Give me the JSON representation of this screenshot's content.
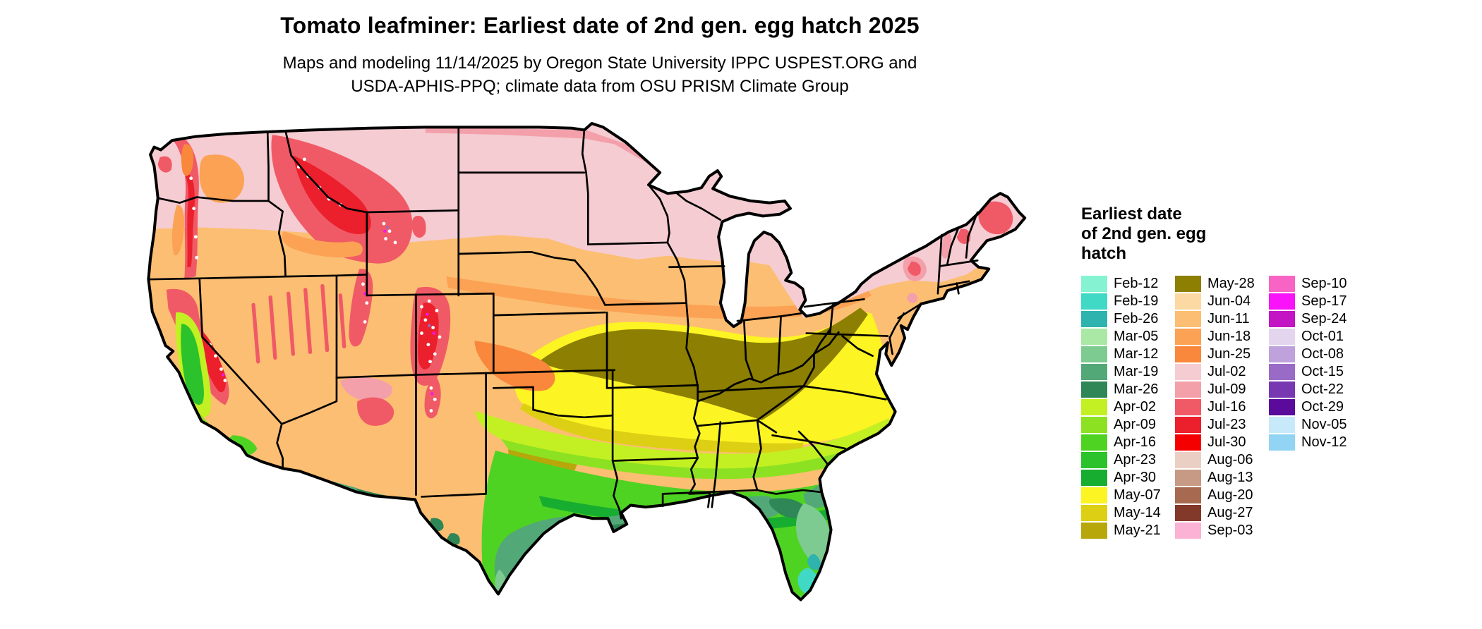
{
  "header": {
    "title": "Tomato leafminer: Earliest date of 2nd gen. egg hatch 2025",
    "subtitle_line1": "Maps and modeling 11/14/2025 by Oregon State University IPPC USPEST.ORG and",
    "subtitle_line2": "USDA-APHIS-PPQ; climate data from OSU PRISM Climate Group"
  },
  "legend": {
    "title_lines": [
      "Earliest date",
      "of 2nd gen. egg",
      "hatch"
    ],
    "columns": [
      {
        "entries": [
          {
            "label": "Feb-12",
            "color": "#85f3d2"
          },
          {
            "label": "Feb-19",
            "color": "#3fd9c5"
          },
          {
            "label": "Feb-26",
            "color": "#2fb3ae"
          },
          {
            "label": "Mar-05",
            "color": "#a9e8a5"
          },
          {
            "label": "Mar-12",
            "color": "#7ecb92"
          },
          {
            "label": "Mar-19",
            "color": "#53a877"
          },
          {
            "label": "Mar-26",
            "color": "#2f8656"
          },
          {
            "label": "Apr-02",
            "color": "#c3f022"
          },
          {
            "label": "Apr-09",
            "color": "#8ce222"
          },
          {
            "label": "Apr-16",
            "color": "#4fd322"
          },
          {
            "label": "Apr-23",
            "color": "#2bc22b"
          },
          {
            "label": "Apr-30",
            "color": "#17ad31"
          },
          {
            "label": "May-07",
            "color": "#fcf423"
          },
          {
            "label": "May-14",
            "color": "#ddcf14"
          },
          {
            "label": "May-21",
            "color": "#b7a70b"
          }
        ]
      },
      {
        "entries": [
          {
            "label": "May-28",
            "color": "#8c7f02"
          },
          {
            "label": "Jun-04",
            "color": "#fcd9a2"
          },
          {
            "label": "Jun-11",
            "color": "#fcbe72"
          },
          {
            "label": "Jun-18",
            "color": "#fba254"
          },
          {
            "label": "Jun-25",
            "color": "#f9873c"
          },
          {
            "label": "Jul-02",
            "color": "#f5ccd2"
          },
          {
            "label": "Jul-09",
            "color": "#f3a0ab"
          },
          {
            "label": "Jul-16",
            "color": "#f05a66"
          },
          {
            "label": "Jul-23",
            "color": "#ec1f2c"
          },
          {
            "label": "Jul-30",
            "color": "#f40000"
          },
          {
            "label": "Aug-06",
            "color": "#ead0c4"
          },
          {
            "label": "Aug-13",
            "color": "#c69a85"
          },
          {
            "label": "Aug-20",
            "color": "#a76a50"
          },
          {
            "label": "Aug-27",
            "color": "#83392a"
          },
          {
            "label": "Sep-03",
            "color": "#fbb2d4"
          }
        ]
      },
      {
        "entries": [
          {
            "label": "Sep-10",
            "color": "#f864c4"
          },
          {
            "label": "Sep-17",
            "color": "#f813f8"
          },
          {
            "label": "Sep-24",
            "color": "#c315c3"
          },
          {
            "label": "Oct-01",
            "color": "#e3d5ee"
          },
          {
            "label": "Oct-08",
            "color": "#bfa2dc"
          },
          {
            "label": "Oct-15",
            "color": "#9a6ac7"
          },
          {
            "label": "Oct-22",
            "color": "#7738b2"
          },
          {
            "label": "Oct-29",
            "color": "#5a0b9b"
          },
          {
            "label": "Nov-05",
            "color": "#c8e9fa"
          },
          {
            "label": "Nov-12",
            "color": "#92d4f3"
          }
        ]
      }
    ]
  }
}
